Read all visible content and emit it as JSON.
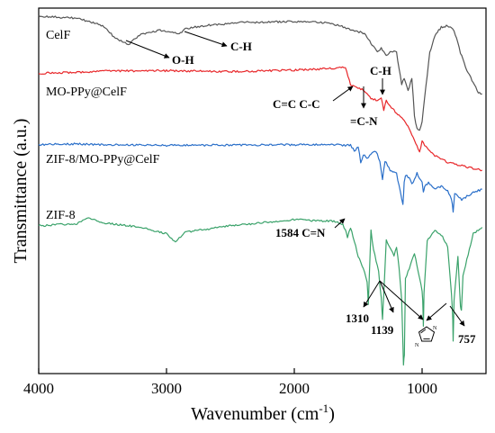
{
  "chart_data": {
    "type": "line",
    "xlabel": "Wavenumber (cm",
    "xlabel_sup": "-1",
    "xlabel_end": ")",
    "ylabel": "Transmittance (a.u.)",
    "xlim": [
      4000,
      500
    ],
    "x_reversed": true,
    "x_ticks": [
      4000,
      3000,
      2000,
      1000
    ],
    "y_ticks": "none",
    "grid": false,
    "legend": "none (series labelled inline)",
    "series": [
      {
        "name": "CelF",
        "color": "#555555",
        "x": [
          4000,
          3700,
          3500,
          3400,
          3300,
          3200,
          3050,
          2900,
          2850,
          2700,
          2400,
          2000,
          1750,
          1650,
          1550,
          1450,
          1400,
          1350,
          1320,
          1280,
          1240,
          1200,
          1160,
          1140,
          1110,
          1080,
          1060,
          1040,
          1020,
          1000,
          980,
          940,
          900,
          850,
          800,
          760,
          730,
          700,
          650,
          600,
          560,
          530
        ],
        "y": [
          97.5,
          96.8,
          94.5,
          90.5,
          88.5,
          91.8,
          93.0,
          92.0,
          93.5,
          94.5,
          95.5,
          95.8,
          95.4,
          94.5,
          93.2,
          92.0,
          89.0,
          86.0,
          87.5,
          85.0,
          86.5,
          86.0,
          76.0,
          78.0,
          74.0,
          78.0,
          66.0,
          62.0,
          61.5,
          64.0,
          72.0,
          86.0,
          91.5,
          94.0,
          94.5,
          93.5,
          90.5,
          86.0,
          80.5,
          76.5,
          73.5,
          73.0
        ]
      },
      {
        "name": "MO-PPy@CelF",
        "color": "#e8282b",
        "x": [
          4000,
          3700,
          3500,
          3000,
          2500,
          2000,
          1700,
          1600,
          1560,
          1540,
          1500,
          1450,
          1400,
          1350,
          1320,
          1300,
          1280,
          1260,
          1200,
          1150,
          1100,
          1040,
          1020,
          1000,
          950,
          900,
          800,
          700,
          600,
          530
        ],
        "y": [
          79.5,
          79.8,
          80.2,
          80.3,
          80.0,
          80.5,
          81.0,
          81.5,
          76.0,
          75.5,
          75.0,
          74.0,
          71.5,
          71.0,
          72.0,
          68.0,
          71.0,
          69.5,
          67.0,
          65.0,
          62.0,
          56.5,
          55.0,
          58.0,
          55.5,
          53.5,
          51.5,
          50.5,
          49.5,
          49.0
        ]
      },
      {
        "name": "ZIF-8/MO-PPy@CelF",
        "color": "#2a6fc9",
        "x": [
          4000,
          3700,
          3500,
          3000,
          2500,
          2000,
          1700,
          1600,
          1560,
          1530,
          1500,
          1480,
          1460,
          1430,
          1400,
          1360,
          1330,
          1310,
          1290,
          1250,
          1200,
          1170,
          1150,
          1140,
          1130,
          1100,
          1080,
          1060,
          1040,
          1000,
          990,
          980,
          950,
          900,
          850,
          800,
          770,
          757,
          745,
          720,
          690,
          660,
          600,
          530
        ],
        "y": [
          57.0,
          57.3,
          57.0,
          56.8,
          56.9,
          57.0,
          57.0,
          56.8,
          57.0,
          55.0,
          56.5,
          51.5,
          54.0,
          52.5,
          54.0,
          55.0,
          51.5,
          46.0,
          52.0,
          49.0,
          48.0,
          42.0,
          38.0,
          45.0,
          47.5,
          46.5,
          44.5,
          46.0,
          48.0,
          45.0,
          42.0,
          44.0,
          45.0,
          43.0,
          44.0,
          42.5,
          40.0,
          36.0,
          41.5,
          41.0,
          39.5,
          40.5,
          42.0,
          43.0
        ]
      },
      {
        "name": "ZIF-8",
        "color": "#3aa26a",
        "x": [
          4000,
          3700,
          3600,
          3500,
          3200,
          3000,
          2930,
          2850,
          2500,
          2100,
          2000,
          1800,
          1700,
          1620,
          1600,
          1584,
          1560,
          1500,
          1460,
          1430,
          1421,
          1400,
          1380,
          1340,
          1320,
          1310,
          1300,
          1280,
          1220,
          1200,
          1180,
          1160,
          1146,
          1139,
          1130,
          1100,
          1060,
          1000,
          995,
          990,
          985,
          960,
          900,
          840,
          800,
          770,
          760,
          757,
          750,
          720,
          700,
          692,
          680,
          600,
          530
        ],
        "y": [
          31.5,
          32.2,
          34.0,
          32.5,
          31.0,
          29.0,
          26.5,
          29.5,
          31.5,
          33.0,
          33.5,
          33.0,
          33.0,
          32.0,
          30.0,
          28.0,
          31.0,
          22.0,
          18.0,
          14.0,
          7.0,
          30.0,
          24.0,
          17.0,
          9.0,
          2.0,
          10.0,
          27.0,
          22.0,
          25.0,
          18.0,
          8.0,
          -12.0,
          -9.0,
          15.0,
          18.0,
          23.0,
          11.0,
          8.0,
          0.0,
          10.0,
          27.0,
          30.0,
          28.0,
          25.0,
          10.0,
          2.0,
          -5.0,
          8.0,
          22.0,
          6.0,
          5.0,
          16.0,
          29.0,
          31.0
        ]
      }
    ],
    "series_labels": [
      "CelF",
      "MO-PPy@CelF",
      "ZIF-8/MO-PPy@CelF",
      "ZIF-8"
    ],
    "annotations": {
      "oh": "O-H",
      "ch1": "C-H",
      "ch2": "C-H",
      "cc": "C=C  C-C",
      "cn": "=C-N",
      "cn2": "1584 C=N",
      "p1310": "1310",
      "p1139": "1139",
      "p757": "757"
    },
    "structure_icon": "imidazole-ring-icon"
  }
}
